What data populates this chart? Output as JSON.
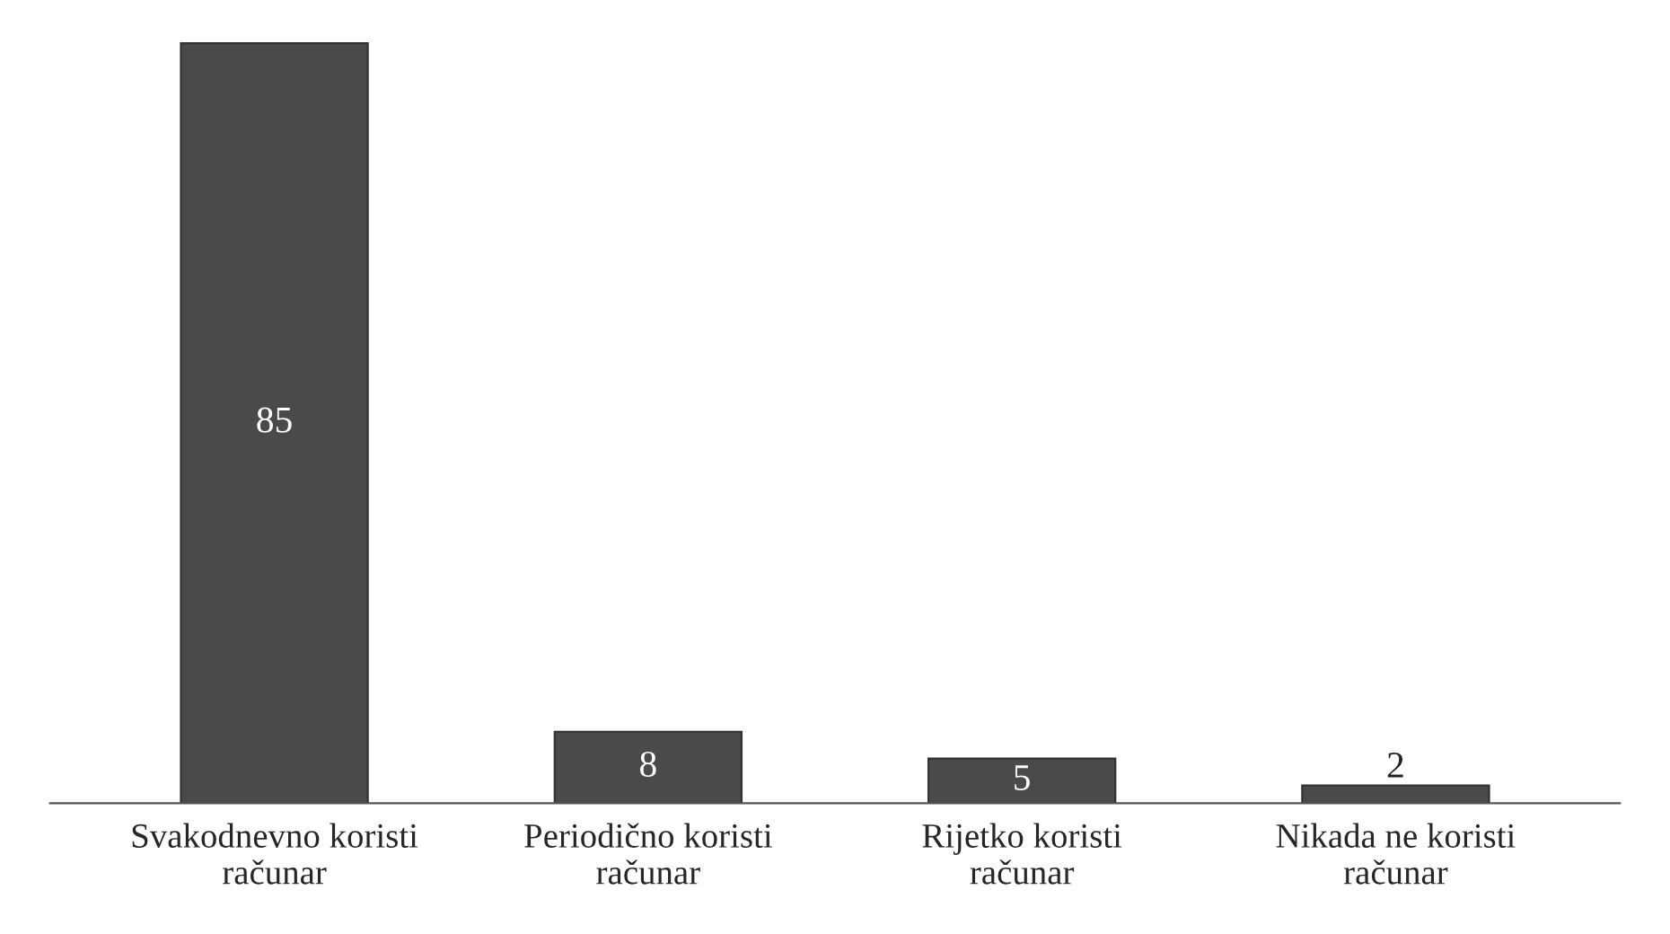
{
  "chart_data": {
    "type": "bar",
    "categories": [
      "Svakodnevno koristi\nračunar",
      "Periodično koristi\nračunar",
      "Rijetko koristi\nračunar",
      "Nikada ne koristi\nračunar"
    ],
    "values": [
      85,
      8,
      5,
      2
    ],
    "color": "#4a4a4a",
    "data_labels": true,
    "grid": false,
    "legend": false
  }
}
